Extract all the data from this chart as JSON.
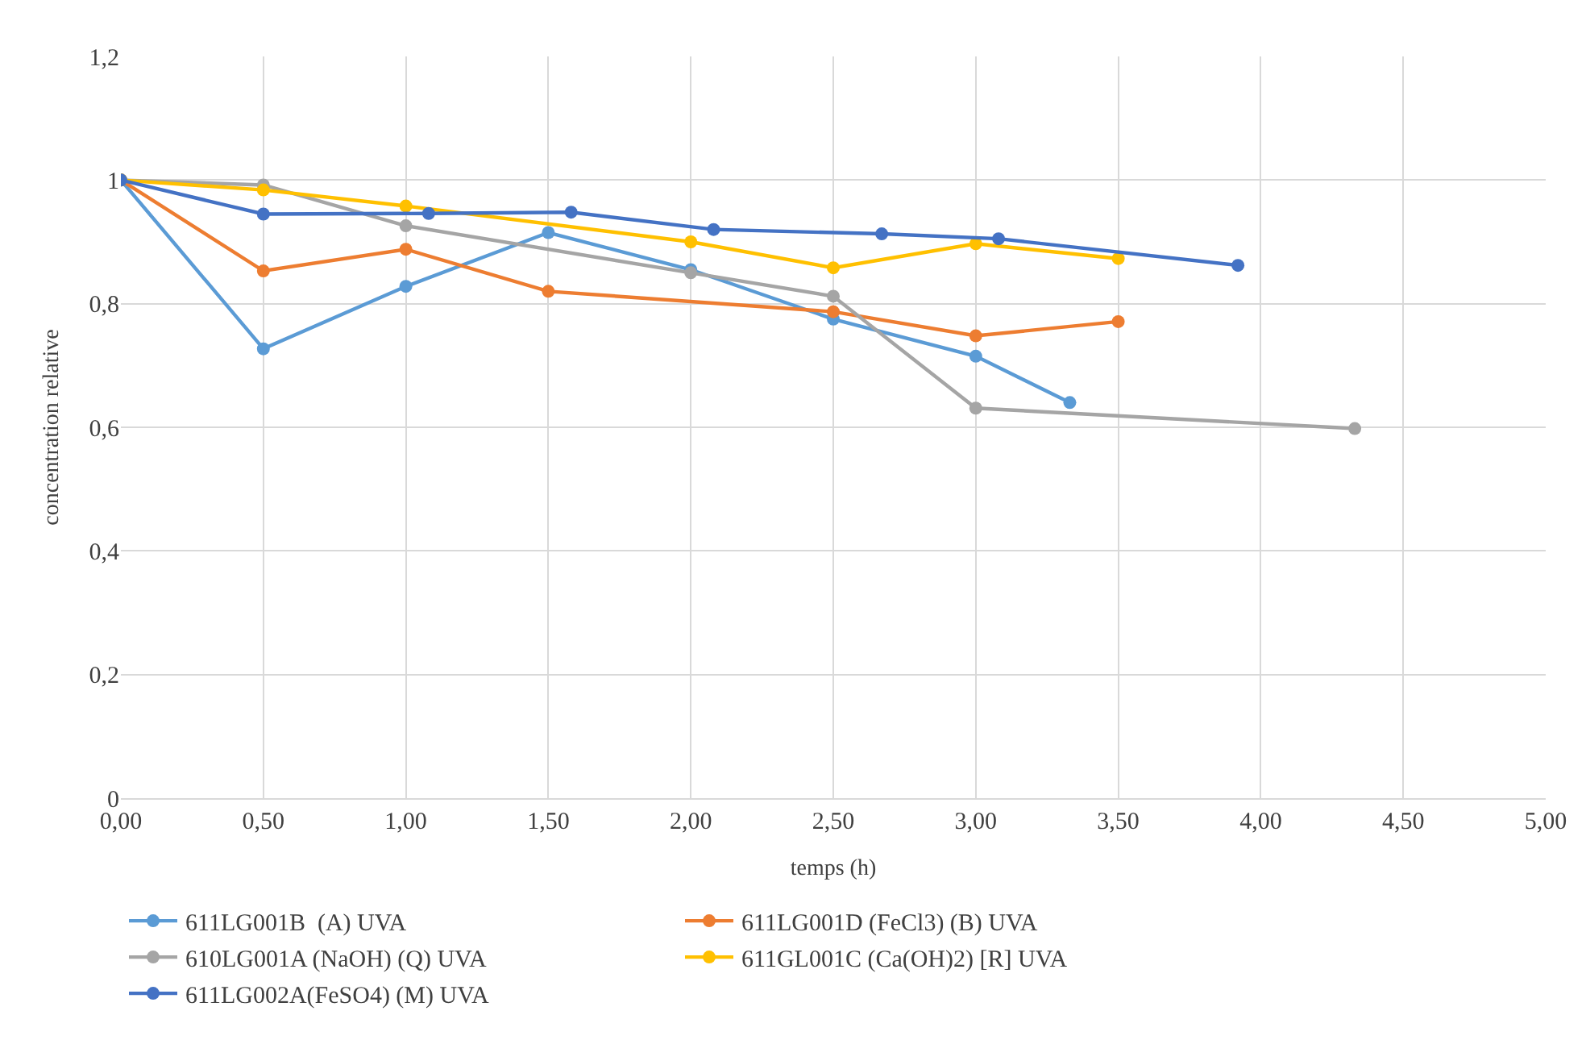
{
  "chart_data": {
    "type": "line",
    "xlabel": "temps (h)",
    "ylabel": "concentration relative",
    "xlim": [
      0,
      5
    ],
    "xticks": [
      {
        "value": 0,
        "label": "0,00"
      },
      {
        "value": 0.5,
        "label": "0,50"
      },
      {
        "value": 1,
        "label": "1,00"
      },
      {
        "value": 1.5,
        "label": "1,50"
      },
      {
        "value": 2,
        "label": "2,00"
      },
      {
        "value": 2.5,
        "label": "2,50"
      },
      {
        "value": 3,
        "label": "3,00"
      },
      {
        "value": 3.5,
        "label": "3,50"
      },
      {
        "value": 4,
        "label": "4,00"
      },
      {
        "value": 4.5,
        "label": "4,50"
      },
      {
        "value": 5,
        "label": "5,00"
      }
    ],
    "ylim": [
      0,
      1.2
    ],
    "yticks": [
      0,
      {
        "value": 0.2,
        "label": "0,2"
      },
      {
        "value": 0.4,
        "label": "0,4"
      },
      {
        "value": 0.6,
        "label": "0,6"
      },
      {
        "value": 0.8,
        "label": "0,8"
      },
      1,
      {
        "value": 1.2,
        "label": "1,2"
      }
    ],
    "grid": true,
    "legend": "bottom",
    "marker": "circle",
    "line_style": "solid",
    "series": [
      {
        "name": "611LG001B  (A) UVA",
        "color": "#5b9bd5",
        "x": [
          0,
          0.5,
          1,
          1.5,
          2,
          2.5,
          3,
          3.33
        ],
        "values": [
          1,
          0.727,
          0.828,
          0.915,
          0.855,
          0.775,
          0.715,
          0.64
        ]
      },
      {
        "name": "611LG001D (FeCl3) (B) UVA",
        "color": "#ed7d31",
        "x": [
          0,
          0.5,
          1,
          1.5,
          2.5,
          3,
          3.5
        ],
        "values": [
          1,
          0.853,
          0.888,
          0.82,
          0.787,
          0.748,
          0.771
        ]
      },
      {
        "name": "610LG001A (NaOH) (Q) UVA",
        "color": "#a5a5a5",
        "x": [
          0,
          0.5,
          1,
          2,
          2.5,
          3,
          4.33
        ],
        "values": [
          1,
          0.992,
          0.926,
          0.85,
          0.812,
          0.631,
          0.598
        ]
      },
      {
        "name": "611GL001C (Ca(OH)2) [R] UVA",
        "color": "#ffc000",
        "x": [
          0,
          0.5,
          1,
          2,
          2.5,
          3,
          3.5
        ],
        "values": [
          1,
          0.984,
          0.958,
          0.9,
          0.858,
          0.897,
          0.873
        ]
      },
      {
        "name": "611LG002A(FeSO4) (M) UVA",
        "color": "#4472c4",
        "x": [
          0,
          0.5,
          1.08,
          1.58,
          2.08,
          2.67,
          3.08,
          3.92
        ],
        "values": [
          1,
          0.945,
          0.946,
          0.948,
          0.92,
          0.913,
          0.905,
          0.862
        ]
      }
    ]
  }
}
